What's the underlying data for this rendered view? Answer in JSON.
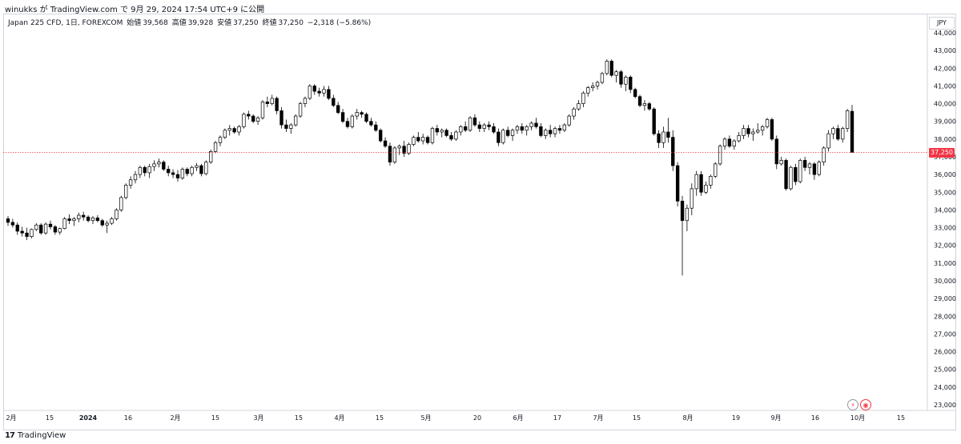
{
  "header": {
    "published_text": "winukks が TradingView.com で 9月 29, 2024 17:54 UTC+9 に公開"
  },
  "legend": {
    "symbol": "Japan 225 CFD, 1日, FOREXCOM",
    "open_label": "始値",
    "open_value": "39,568",
    "high_label": "高値",
    "high_value": "39,928",
    "low_label": "安値",
    "low_value": "37,250",
    "close_label": "終値",
    "close_value": "37,250",
    "change": "−2,318 (−5.86%)"
  },
  "currency_button": "JPY",
  "last_price_label": "37,250",
  "footer": {
    "logo_glyph": "17",
    "brand": "TradingView"
  },
  "events": {
    "icon_a": "split-icon",
    "icon_b": "dividend-icon"
  },
  "colors": {
    "candle_up_fill": "#ffffff",
    "candle_down_fill": "#000000",
    "candle_border": "#000000",
    "last_price_line": "#f23645",
    "axis_text": "#131722",
    "frame": "#d1d4dc"
  },
  "chart_data": {
    "type": "candlestick",
    "title": "",
    "xlabel": "",
    "ylabel": "",
    "ylim": [
      22800,
      44300
    ],
    "y_ticks": [
      23000,
      24000,
      25000,
      26000,
      27000,
      28000,
      29000,
      30000,
      31000,
      32000,
      33000,
      34000,
      35000,
      36000,
      37000,
      38000,
      39000,
      40000,
      41000,
      42000,
      43000,
      44000
    ],
    "y_tick_labels": [
      "23,000",
      "24,000",
      "25,000",
      "26,000",
      "27,000",
      "28,000",
      "29,000",
      "30,000",
      "31,000",
      "32,000",
      "33,000",
      "34,000",
      "35,000",
      "36,000",
      "37,000",
      "38,000",
      "39,000",
      "40,000",
      "41,000",
      "42,000",
      "43,000",
      "44,000"
    ],
    "x_tick_labels": [
      "2月",
      "15",
      "2024",
      "16",
      "2月",
      "15",
      "3月",
      "15",
      "4月",
      "15",
      "5月",
      "20",
      "6月",
      "17",
      "7月",
      "15",
      "8月",
      "19",
      "9月",
      "16",
      "10月",
      "15"
    ],
    "last_price": 37250,
    "grid": false,
    "candles": [
      [
        33500,
        33650,
        33100,
        33300
      ],
      [
        33300,
        33500,
        33000,
        33150
      ],
      [
        33150,
        33300,
        32600,
        32800
      ],
      [
        32800,
        33050,
        32500,
        32700
      ],
      [
        32700,
        33000,
        32300,
        32500
      ],
      [
        32500,
        32950,
        32400,
        32900
      ],
      [
        32900,
        33250,
        32800,
        33150
      ],
      [
        33150,
        33250,
        32600,
        32700
      ],
      [
        32700,
        33300,
        32600,
        33200
      ],
      [
        33200,
        33400,
        32900,
        33050
      ],
      [
        33050,
        33150,
        32600,
        32750
      ],
      [
        32750,
        33000,
        32600,
        32950
      ],
      [
        32950,
        33600,
        32900,
        33500
      ],
      [
        33500,
        33750,
        33200,
        33400
      ],
      [
        33400,
        33600,
        33100,
        33500
      ],
      [
        33500,
        33850,
        33300,
        33700
      ],
      [
        33700,
        33900,
        33400,
        33600
      ],
      [
        33600,
        33700,
        33300,
        33400
      ],
      [
        33400,
        33650,
        33200,
        33550
      ],
      [
        33550,
        33700,
        33300,
        33400
      ],
      [
        33400,
        33500,
        33050,
        33150
      ],
      [
        33150,
        33400,
        32700,
        33250
      ],
      [
        33250,
        33600,
        33150,
        33500
      ],
      [
        33500,
        34100,
        33400,
        34000
      ],
      [
        34000,
        34800,
        33900,
        34700
      ],
      [
        34700,
        35500,
        34600,
        35400
      ],
      [
        35400,
        35900,
        35200,
        35700
      ],
      [
        35700,
        36200,
        35500,
        36000
      ],
      [
        36000,
        36500,
        35800,
        36400
      ],
      [
        36400,
        36500,
        35900,
        36100
      ],
      [
        36100,
        36600,
        35800,
        36450
      ],
      [
        36450,
        36800,
        36200,
        36600
      ],
      [
        36600,
        36900,
        36400,
        36700
      ],
      [
        36700,
        36800,
        36200,
        36300
      ],
      [
        36300,
        36500,
        35900,
        36100
      ],
      [
        36100,
        36300,
        35800,
        36000
      ],
      [
        36000,
        36250,
        35600,
        35800
      ],
      [
        35800,
        36400,
        35700,
        36300
      ],
      [
        36300,
        36400,
        35900,
        36050
      ],
      [
        36050,
        36500,
        35900,
        36400
      ],
      [
        36400,
        36650,
        36200,
        36500
      ],
      [
        36500,
        36600,
        35900,
        36050
      ],
      [
        36050,
        36800,
        35950,
        36700
      ],
      [
        36700,
        37400,
        36600,
        37300
      ],
      [
        37300,
        37900,
        37200,
        37800
      ],
      [
        37800,
        38200,
        37600,
        38100
      ],
      [
        38100,
        38600,
        38000,
        38500
      ],
      [
        38500,
        38800,
        38200,
        38600
      ],
      [
        38600,
        38700,
        38300,
        38400
      ],
      [
        38400,
        38800,
        38200,
        38700
      ],
      [
        38700,
        39500,
        38600,
        39400
      ],
      [
        39400,
        39600,
        39100,
        39300
      ],
      [
        39300,
        39400,
        38900,
        39000
      ],
      [
        39000,
        39300,
        38800,
        39200
      ],
      [
        39200,
        40200,
        39100,
        40100
      ],
      [
        40100,
        40400,
        39800,
        40000
      ],
      [
        40000,
        40500,
        39900,
        40300
      ],
      [
        40300,
        40400,
        39400,
        39600
      ],
      [
        39600,
        39800,
        38600,
        38800
      ],
      [
        38800,
        39100,
        38400,
        38600
      ],
      [
        38600,
        38900,
        38300,
        38800
      ],
      [
        38800,
        39400,
        38700,
        39300
      ],
      [
        39300,
        40100,
        39200,
        40000
      ],
      [
        40000,
        40400,
        39800,
        40300
      ],
      [
        40300,
        41100,
        40200,
        41000
      ],
      [
        41000,
        41100,
        40500,
        40700
      ],
      [
        40700,
        40900,
        40400,
        40600
      ],
      [
        40600,
        41000,
        40400,
        40800
      ],
      [
        40800,
        41000,
        40200,
        40300
      ],
      [
        40300,
        40500,
        39800,
        39900
      ],
      [
        39900,
        40100,
        39400,
        39500
      ],
      [
        39500,
        39700,
        38900,
        39000
      ],
      [
        39000,
        39200,
        38600,
        38700
      ],
      [
        38700,
        39400,
        38600,
        39300
      ],
      [
        39300,
        39700,
        39100,
        39500
      ],
      [
        39500,
        39600,
        39200,
        39400
      ],
      [
        39400,
        39500,
        38900,
        39000
      ],
      [
        39000,
        39200,
        38700,
        38800
      ],
      [
        38800,
        39000,
        38400,
        38500
      ],
      [
        38500,
        38600,
        37800,
        37900
      ],
      [
        37900,
        38100,
        37500,
        37600
      ],
      [
        37600,
        37800,
        36500,
        36700
      ],
      [
        36700,
        37600,
        36600,
        37500
      ],
      [
        37500,
        37700,
        37100,
        37600
      ],
      [
        37600,
        37900,
        37000,
        37200
      ],
      [
        37200,
        37800,
        37100,
        37700
      ],
      [
        37700,
        38200,
        37600,
        38100
      ],
      [
        38100,
        38400,
        37800,
        37900
      ],
      [
        37900,
        38300,
        37700,
        38100
      ],
      [
        38100,
        38200,
        37700,
        37800
      ],
      [
        37800,
        38700,
        37700,
        38600
      ],
      [
        38600,
        38800,
        38200,
        38400
      ],
      [
        38400,
        38600,
        38100,
        38500
      ],
      [
        38500,
        38600,
        38100,
        38200
      ],
      [
        38200,
        38400,
        37900,
        38000
      ],
      [
        38000,
        38500,
        37900,
        38400
      ],
      [
        38400,
        38800,
        38200,
        38700
      ],
      [
        38700,
        39000,
        38400,
        38500
      ],
      [
        38500,
        39300,
        38400,
        39200
      ],
      [
        39200,
        39400,
        38700,
        38800
      ],
      [
        38800,
        39000,
        38400,
        38600
      ],
      [
        38600,
        38900,
        38400,
        38800
      ],
      [
        38800,
        39000,
        38500,
        38700
      ],
      [
        38700,
        38900,
        38300,
        38400
      ],
      [
        38400,
        38600,
        37600,
        37800
      ],
      [
        37800,
        38600,
        37700,
        38500
      ],
      [
        38500,
        38700,
        38100,
        38200
      ],
      [
        38200,
        38600,
        37900,
        38500
      ],
      [
        38500,
        38800,
        38300,
        38700
      ],
      [
        38700,
        38900,
        38300,
        38500
      ],
      [
        38500,
        38800,
        38200,
        38700
      ],
      [
        38700,
        39000,
        38500,
        38900
      ],
      [
        38900,
        39200,
        38600,
        38700
      ],
      [
        38700,
        38900,
        38100,
        38200
      ],
      [
        38200,
        38600,
        38000,
        38500
      ],
      [
        38500,
        38800,
        38100,
        38300
      ],
      [
        38300,
        38700,
        38100,
        38600
      ],
      [
        38600,
        38800,
        38300,
        38500
      ],
      [
        38500,
        38900,
        38400,
        38800
      ],
      [
        38800,
        39400,
        38700,
        39300
      ],
      [
        39300,
        39800,
        39100,
        39700
      ],
      [
        39700,
        40200,
        39600,
        40000
      ],
      [
        40000,
        40700,
        39800,
        40600
      ],
      [
        40600,
        41000,
        40400,
        40900
      ],
      [
        40900,
        41200,
        40700,
        41000
      ],
      [
        41000,
        41300,
        40800,
        41200
      ],
      [
        41200,
        41800,
        41100,
        41700
      ],
      [
        41700,
        42500,
        41600,
        42400
      ],
      [
        42400,
        42500,
        41500,
        41600
      ],
      [
        41600,
        41900,
        41200,
        41800
      ],
      [
        41800,
        41900,
        40900,
        41100
      ],
      [
        41100,
        41600,
        40700,
        41500
      ],
      [
        41500,
        41600,
        40600,
        40800
      ],
      [
        40800,
        40900,
        40300,
        40400
      ],
      [
        40400,
        40500,
        39800,
        39900
      ],
      [
        39900,
        40200,
        39600,
        40000
      ],
      [
        40000,
        40100,
        39600,
        39700
      ],
      [
        39700,
        39800,
        38200,
        38300
      ],
      [
        38300,
        38500,
        37500,
        37800
      ],
      [
        37800,
        38700,
        37500,
        38400
      ],
      [
        38400,
        39200,
        37800,
        38100
      ],
      [
        38100,
        38500,
        36200,
        36500
      ],
      [
        36500,
        36700,
        34200,
        34500
      ],
      [
        34500,
        34800,
        30300,
        33400
      ],
      [
        33400,
        34300,
        32800,
        34100
      ],
      [
        34100,
        35500,
        33700,
        35200
      ],
      [
        35200,
        36200,
        34800,
        36000
      ],
      [
        36000,
        36200,
        34800,
        35000
      ],
      [
        35000,
        35600,
        34900,
        35400
      ],
      [
        35400,
        36000,
        35200,
        35900
      ],
      [
        35900,
        36700,
        35800,
        36600
      ],
      [
        36600,
        37700,
        36500,
        37600
      ],
      [
        37600,
        38100,
        37400,
        38000
      ],
      [
        38000,
        38200,
        37500,
        37600
      ],
      [
        37600,
        38000,
        37400,
        37900
      ],
      [
        37900,
        38400,
        37800,
        38200
      ],
      [
        38200,
        38800,
        38000,
        38600
      ],
      [
        38600,
        38800,
        38100,
        38300
      ],
      [
        38300,
        38600,
        37900,
        38400
      ],
      [
        38400,
        38900,
        38300,
        38500
      ],
      [
        38500,
        38800,
        38200,
        38700
      ],
      [
        38700,
        39200,
        38600,
        39100
      ],
      [
        39100,
        39200,
        37900,
        38000
      ],
      [
        38000,
        38200,
        36300,
        36600
      ],
      [
        36600,
        37000,
        36500,
        36800
      ],
      [
        36800,
        36900,
        35100,
        35200
      ],
      [
        35200,
        36500,
        35100,
        36400
      ],
      [
        36400,
        36600,
        35400,
        35600
      ],
      [
        35600,
        36900,
        35500,
        36800
      ],
      [
        36800,
        37000,
        36200,
        36400
      ],
      [
        36400,
        36700,
        36000,
        36600
      ],
      [
        36600,
        36700,
        35700,
        36000
      ],
      [
        36000,
        36800,
        35900,
        36700
      ],
      [
        36700,
        37600,
        36500,
        37500
      ],
      [
        37500,
        38500,
        37300,
        38300
      ],
      [
        38300,
        38700,
        38000,
        38600
      ],
      [
        38600,
        38800,
        37900,
        38000
      ],
      [
        38000,
        38700,
        37800,
        38600
      ],
      [
        38600,
        39700,
        38400,
        39600
      ],
      [
        39568,
        39928,
        37250,
        37250
      ]
    ]
  }
}
